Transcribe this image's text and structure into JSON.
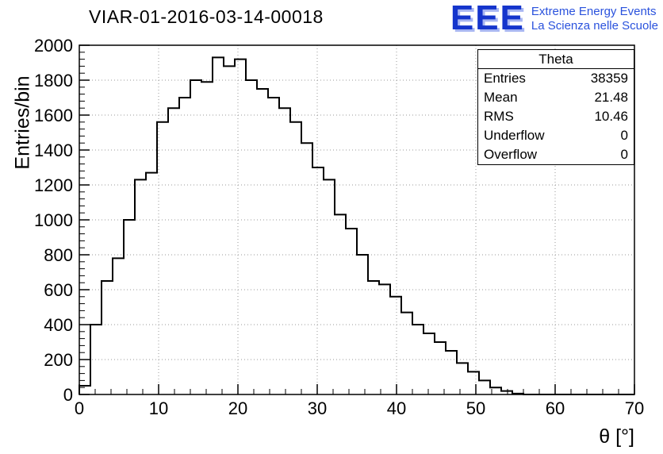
{
  "logo": {
    "acronym": "EEE",
    "line1": "Extreme Energy Events",
    "line2": "La Scienza nelle Scuole",
    "color": "#2a52dd"
  },
  "stats": {
    "title": "Theta",
    "rows": [
      {
        "label": "Entries",
        "value": "38359"
      },
      {
        "label": "Mean",
        "value": "21.48"
      },
      {
        "label": "RMS",
        "value": "10.46"
      },
      {
        "label": "Underflow",
        "value": "0"
      },
      {
        "label": "Overflow",
        "value": "0"
      }
    ]
  },
  "chart_data": {
    "type": "bar",
    "subtype": "histogram-step",
    "title": "VIAR-01-2016-03-14-00018",
    "xlabel": "θ [°]",
    "ylabel": "Entries/bin",
    "xlim": [
      0,
      70
    ],
    "ylim": [
      0,
      2000
    ],
    "x_ticks": [
      0,
      10,
      20,
      30,
      40,
      50,
      60,
      70
    ],
    "y_ticks": [
      0,
      200,
      400,
      600,
      800,
      1000,
      1200,
      1400,
      1600,
      1800,
      2000
    ],
    "x_minor_step": 2,
    "y_minor_step": 40,
    "grid": true,
    "legend": "stats-box (Theta): Entries 38359, Mean 21.48, RMS 10.46, Underflow 0, Overflow 0",
    "bin_start": 0,
    "bin_width": 1.4,
    "values": [
      50,
      400,
      650,
      780,
      1000,
      1230,
      1270,
      1560,
      1640,
      1700,
      1800,
      1790,
      1930,
      1880,
      1920,
      1800,
      1750,
      1700,
      1640,
      1560,
      1440,
      1300,
      1230,
      1030,
      950,
      800,
      650,
      630,
      560,
      470,
      400,
      350,
      300,
      250,
      180,
      130,
      80,
      40,
      20,
      5,
      0,
      0,
      0,
      0,
      0,
      0,
      0,
      0,
      0,
      0
    ],
    "line_color": "#000000",
    "grid_color": "#999999"
  }
}
